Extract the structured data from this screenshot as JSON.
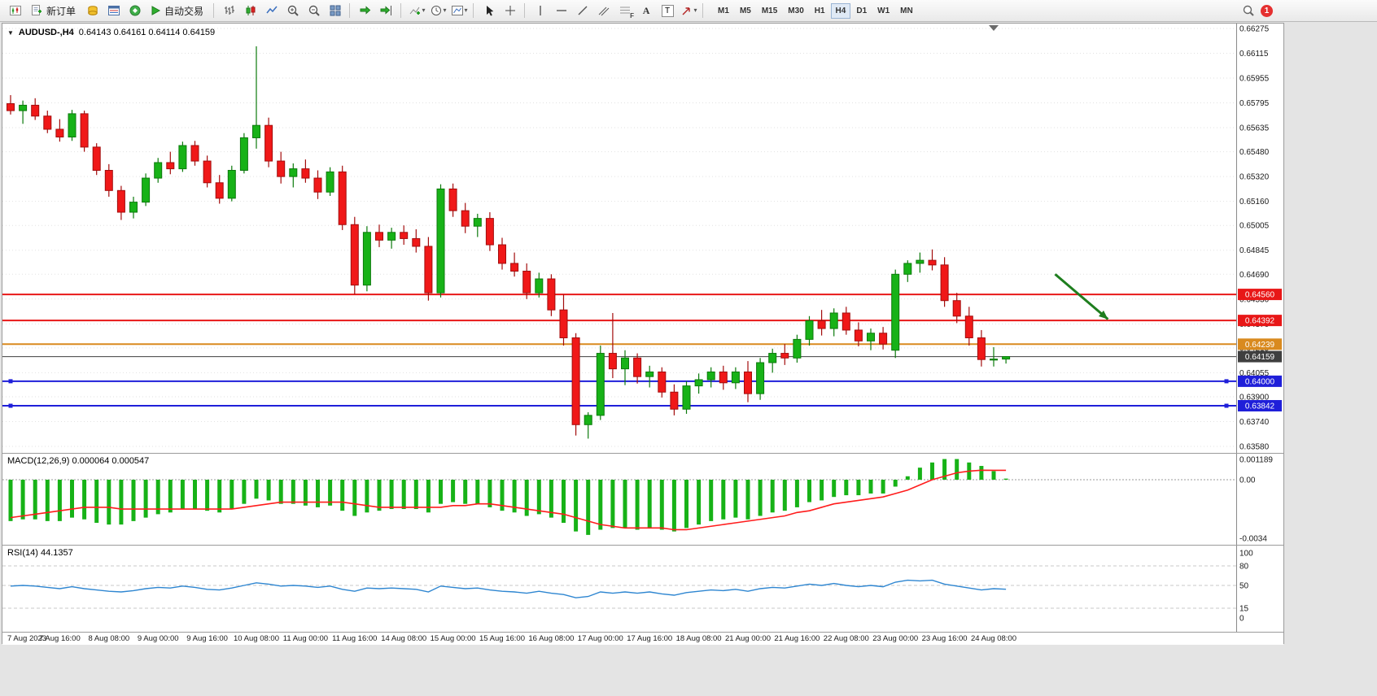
{
  "toolbar": {
    "new_order_label": "新订单",
    "autotrading_label": "自动交易",
    "timeframes": [
      "M1",
      "M5",
      "M15",
      "M30",
      "H1",
      "H4",
      "D1",
      "W1",
      "MN"
    ],
    "active_timeframe": "H4",
    "notification_count": "1",
    "icon_glyphs": {
      "chart_menu_arrow": "▼",
      "dropdown_arrow": "▾",
      "text_tool": "A",
      "label_tool": "T",
      "fibonacci_letter": "F"
    }
  },
  "chart": {
    "symbol_label": "AUDUSD-,H4",
    "ohlc_readout": "0.64143  0.64161  0.64114  0.64159"
  },
  "colors": {
    "chart_bg": "#ffffff",
    "toolbar_bg": "#f0f0f0",
    "grid": "#e2e2e2",
    "up_candle": "#17b217",
    "down_candle": "#f01818",
    "macd_bar": "#17b217",
    "macd_signal": "#ff1c1c",
    "rsi_line": "#2e86d1",
    "level_red": "#e81717",
    "level_orange": "#d98a1f",
    "level_blue": "#1f1fd9"
  },
  "chart_data": [
    {
      "type": "candlestick",
      "symbol": "AUDUSD-",
      "timeframe": "H4",
      "up_color": "#17b217",
      "up_stroke": "#0c7a0c",
      "down_color": "#f01818",
      "down_stroke": "#a30d0d",
      "y_range": [
        0.63569,
        0.66307
      ],
      "x_labels": [
        "7 Aug 2023",
        "7 Aug 16:00",
        "8 Aug 08:00",
        "9 Aug 00:00",
        "9 Aug 16:00",
        "10 Aug 08:00",
        "11 Aug 00:00",
        "11 Aug 16:00",
        "14 Aug 08:00",
        "15 Aug 00:00",
        "15 Aug 16:00",
        "16 Aug 08:00",
        "17 Aug 00:00",
        "17 Aug 16:00",
        "18 Aug 08:00",
        "21 Aug 00:00",
        "21 Aug 16:00",
        "22 Aug 08:00",
        "23 Aug 00:00",
        "23 Aug 16:00",
        "24 Aug 08:00"
      ],
      "label_every_bars": 4,
      "y_axis": [
        {
          "text": "0.66275",
          "value": 0.66275
        },
        {
          "text": "0.66115",
          "value": 0.66115
        },
        {
          "text": "0.65955",
          "value": 0.65955
        },
        {
          "text": "0.65795",
          "value": 0.65795
        },
        {
          "text": "0.65635",
          "value": 0.65635
        },
        {
          "text": "0.65480",
          "value": 0.6548
        },
        {
          "text": "0.65320",
          "value": 0.6532
        },
        {
          "text": "0.65160",
          "value": 0.6516
        },
        {
          "text": "0.65005",
          "value": 0.65005
        },
        {
          "text": "0.64845",
          "value": 0.64845
        },
        {
          "text": "0.64690",
          "value": 0.6469
        },
        {
          "text": "0.64530",
          "value": 0.6453
        },
        {
          "text": "0.64370",
          "value": 0.6437
        },
        {
          "text": "0.64215",
          "value": 0.64215
        },
        {
          "text": "0.64055",
          "value": 0.64055
        },
        {
          "text": "0.63900",
          "value": 0.639
        },
        {
          "text": "0.63740",
          "value": 0.6374
        },
        {
          "text": "0.63580",
          "value": 0.6358
        }
      ],
      "levels": [
        {
          "label": "0.64560",
          "value": 0.6456,
          "color": "#e81717",
          "width": 2
        },
        {
          "label": "0.64392",
          "value": 0.64392,
          "color": "#e81717",
          "width": 2
        },
        {
          "label": "0.64239",
          "value": 0.64239,
          "color": "#d98a1f",
          "width": 2
        },
        {
          "label": "0.64159",
          "value": 0.64159,
          "color": "#3f3f3f",
          "width": 1,
          "current": true
        },
        {
          "label": "0.64000",
          "value": 0.64,
          "color": "#1f1fd9",
          "width": 2,
          "handles": true
        },
        {
          "label": "0.63842",
          "value": 0.63842,
          "color": "#1f1fd9",
          "width": 2,
          "handles": true
        }
      ],
      "arrow": {
        "color": "#1e7e1e",
        "from_bar": 85,
        "from_price": 0.6469,
        "to_bar": 89.3,
        "to_price": 0.644
      },
      "shift_marker_bar": 80,
      "candles": [
        [
          0.6579,
          0.65845,
          0.6572,
          0.65745
        ],
        [
          0.65745,
          0.6581,
          0.6566,
          0.6578
        ],
        [
          0.6578,
          0.65825,
          0.65685,
          0.6571
        ],
        [
          0.6571,
          0.65745,
          0.656,
          0.65625
        ],
        [
          0.65625,
          0.6569,
          0.65545,
          0.65575
        ],
        [
          0.65575,
          0.6575,
          0.6555,
          0.65725
        ],
        [
          0.65725,
          0.65745,
          0.6548,
          0.6551
        ],
        [
          0.6551,
          0.65535,
          0.6533,
          0.6536
        ],
        [
          0.6536,
          0.654,
          0.6519,
          0.6523
        ],
        [
          0.6523,
          0.6526,
          0.6504,
          0.6509
        ],
        [
          0.6509,
          0.6519,
          0.6505,
          0.65155
        ],
        [
          0.65155,
          0.6534,
          0.6513,
          0.6531
        ],
        [
          0.6531,
          0.6544,
          0.6528,
          0.6541
        ],
        [
          0.6541,
          0.6548,
          0.65335,
          0.6537
        ],
        [
          0.6537,
          0.65545,
          0.6535,
          0.6552
        ],
        [
          0.6552,
          0.6555,
          0.6539,
          0.6542
        ],
        [
          0.6542,
          0.65455,
          0.6525,
          0.6528
        ],
        [
          0.6528,
          0.6533,
          0.65145,
          0.6518
        ],
        [
          0.6518,
          0.6539,
          0.6516,
          0.6536
        ],
        [
          0.6536,
          0.656,
          0.6534,
          0.6557
        ],
        [
          0.6557,
          0.6616,
          0.655,
          0.6565
        ],
        [
          0.6565,
          0.657,
          0.6538,
          0.6542
        ],
        [
          0.6542,
          0.6548,
          0.65275,
          0.6532
        ],
        [
          0.6532,
          0.65405,
          0.6525,
          0.6537
        ],
        [
          0.6537,
          0.6543,
          0.6528,
          0.6531
        ],
        [
          0.6531,
          0.6536,
          0.65175,
          0.6522
        ],
        [
          0.6522,
          0.6538,
          0.65195,
          0.6535
        ],
        [
          0.6535,
          0.6539,
          0.64975,
          0.6501
        ],
        [
          0.6501,
          0.6506,
          0.6456,
          0.6462
        ],
        [
          0.6462,
          0.65,
          0.6458,
          0.6496
        ],
        [
          0.6496,
          0.6501,
          0.64865,
          0.6491
        ],
        [
          0.6491,
          0.6499,
          0.64855,
          0.6496
        ],
        [
          0.6496,
          0.65005,
          0.6488,
          0.6492
        ],
        [
          0.6492,
          0.6498,
          0.6483,
          0.6487
        ],
        [
          0.6487,
          0.6493,
          0.6452,
          0.6457
        ],
        [
          0.6457,
          0.6527,
          0.6454,
          0.6524
        ],
        [
          0.6524,
          0.65275,
          0.6506,
          0.651
        ],
        [
          0.651,
          0.6515,
          0.64955,
          0.65
        ],
        [
          0.65,
          0.6508,
          0.6493,
          0.6505
        ],
        [
          0.6505,
          0.6509,
          0.6484,
          0.6488
        ],
        [
          0.6488,
          0.64925,
          0.6472,
          0.6476
        ],
        [
          0.6476,
          0.6483,
          0.64675,
          0.6471
        ],
        [
          0.6471,
          0.6476,
          0.6453,
          0.6457
        ],
        [
          0.6457,
          0.647,
          0.6454,
          0.6466
        ],
        [
          0.6466,
          0.6469,
          0.6442,
          0.6446
        ],
        [
          0.6446,
          0.6456,
          0.6423,
          0.6428
        ],
        [
          0.6428,
          0.6431,
          0.6365,
          0.6372
        ],
        [
          0.6372,
          0.638,
          0.6363,
          0.6378
        ],
        [
          0.6378,
          0.6423,
          0.6375,
          0.6418
        ],
        [
          0.6418,
          0.6444,
          0.6402,
          0.6408
        ],
        [
          0.6408,
          0.642,
          0.63975,
          0.6415
        ],
        [
          0.6415,
          0.6418,
          0.63985,
          0.6403
        ],
        [
          0.6403,
          0.641,
          0.6396,
          0.6406
        ],
        [
          0.6406,
          0.6409,
          0.63895,
          0.6393
        ],
        [
          0.6393,
          0.6398,
          0.6378,
          0.6382
        ],
        [
          0.6382,
          0.64,
          0.6379,
          0.6397
        ],
        [
          0.6397,
          0.6405,
          0.6392,
          0.6401
        ],
        [
          0.6401,
          0.6409,
          0.6396,
          0.6406
        ],
        [
          0.6406,
          0.641,
          0.63945,
          0.6399
        ],
        [
          0.6399,
          0.6409,
          0.6395,
          0.6406
        ],
        [
          0.6406,
          0.6413,
          0.63865,
          0.6392
        ],
        [
          0.6392,
          0.6415,
          0.6388,
          0.6412
        ],
        [
          0.6412,
          0.6421,
          0.64055,
          0.6418
        ],
        [
          0.6418,
          0.6424,
          0.64105,
          0.6415
        ],
        [
          0.6415,
          0.643,
          0.6412,
          0.6427
        ],
        [
          0.6427,
          0.6442,
          0.6423,
          0.6439
        ],
        [
          0.6439,
          0.6446,
          0.64295,
          0.6434
        ],
        [
          0.6434,
          0.6447,
          0.6429,
          0.6444
        ],
        [
          0.6444,
          0.6448,
          0.643,
          0.6433
        ],
        [
          0.6433,
          0.6438,
          0.64225,
          0.6426
        ],
        [
          0.6426,
          0.6434,
          0.642,
          0.6431
        ],
        [
          0.6431,
          0.6435,
          0.64205,
          0.6424
        ],
        [
          0.642,
          0.6472,
          0.6415,
          0.6469
        ],
        [
          0.6469,
          0.6478,
          0.6464,
          0.6476
        ],
        [
          0.6476,
          0.6483,
          0.647,
          0.6478
        ],
        [
          0.6478,
          0.6485,
          0.64715,
          0.6475
        ],
        [
          0.6475,
          0.648,
          0.6448,
          0.6452
        ],
        [
          0.6452,
          0.6457,
          0.64375,
          0.6442
        ],
        [
          0.6442,
          0.6448,
          0.6423,
          0.6428
        ],
        [
          0.6428,
          0.6433,
          0.64095,
          0.6414
        ],
        [
          0.6414,
          0.6422,
          0.64095,
          0.64143
        ],
        [
          0.64143,
          0.64161,
          0.64114,
          0.64159
        ]
      ]
    },
    {
      "type": "bar",
      "name": "MACD",
      "label": "MACD(12,26,9) 0.000064 0.000547",
      "bar_color": "#17b217",
      "signal_color": "#ff1c1c",
      "axis": [
        {
          "text": "0.001189",
          "value": 0.001189
        },
        {
          "text": "0.00",
          "value": 0.0
        },
        {
          "text": "-0.0034",
          "value": -0.0034
        }
      ],
      "zero_line": 0,
      "values": [
        -0.0024,
        -0.0023,
        -0.0023,
        -0.0024,
        -0.0024,
        -0.0022,
        -0.0023,
        -0.0025,
        -0.0026,
        -0.0026,
        -0.0024,
        -0.0022,
        -0.002,
        -0.0019,
        -0.0017,
        -0.0017,
        -0.0018,
        -0.0019,
        -0.0017,
        -0.0014,
        -0.0011,
        -0.0012,
        -0.0014,
        -0.0014,
        -0.0015,
        -0.0016,
        -0.0015,
        -0.0018,
        -0.0021,
        -0.0019,
        -0.0018,
        -0.0017,
        -0.0017,
        -0.0017,
        -0.0019,
        -0.0014,
        -0.0013,
        -0.0014,
        -0.0014,
        -0.0016,
        -0.0018,
        -0.0019,
        -0.0021,
        -0.002,
        -0.0022,
        -0.0025,
        -0.003,
        -0.0032,
        -0.0029,
        -0.0028,
        -0.0028,
        -0.0029,
        -0.0028,
        -0.0029,
        -0.003,
        -0.0028,
        -0.0026,
        -0.0024,
        -0.0023,
        -0.0022,
        -0.0023,
        -0.0021,
        -0.0019,
        -0.0018,
        -0.0016,
        -0.0013,
        -0.0012,
        -0.001,
        -0.0009,
        -0.0009,
        -0.0008,
        -0.0008,
        -0.0004,
        0.0002,
        0.0007,
        0.001,
        0.0012,
        0.0012,
        0.001,
        0.0008,
        0.0005,
        6.4e-05
      ],
      "signal": [
        -0.0022,
        -0.0021,
        -0.002,
        -0.0019,
        -0.0018,
        -0.0017,
        -0.0016,
        -0.0016,
        -0.0016,
        -0.0017,
        -0.0017,
        -0.0017,
        -0.0017,
        -0.0017,
        -0.0017,
        -0.0017,
        -0.0017,
        -0.0017,
        -0.0017,
        -0.0016,
        -0.0015,
        -0.0014,
        -0.0013,
        -0.0013,
        -0.0013,
        -0.0013,
        -0.0013,
        -0.0013,
        -0.0014,
        -0.0015,
        -0.0016,
        -0.0016,
        -0.0016,
        -0.0016,
        -0.0016,
        -0.0016,
        -0.0015,
        -0.0015,
        -0.0014,
        -0.0014,
        -0.0015,
        -0.0016,
        -0.0017,
        -0.0018,
        -0.0019,
        -0.002,
        -0.0022,
        -0.0024,
        -0.0026,
        -0.0027,
        -0.0028,
        -0.0028,
        -0.0028,
        -0.0028,
        -0.0029,
        -0.0029,
        -0.0028,
        -0.0027,
        -0.0026,
        -0.0025,
        -0.0024,
        -0.0023,
        -0.0022,
        -0.0021,
        -0.0019,
        -0.0018,
        -0.0016,
        -0.0014,
        -0.0013,
        -0.0012,
        -0.0011,
        -0.001,
        -0.0008,
        -0.0006,
        -0.0003,
        0.0,
        0.0002,
        0.0004,
        0.0005,
        0.00055,
        0.000547,
        0.000547
      ]
    },
    {
      "type": "line",
      "name": "RSI",
      "label": "RSI(14) 44.1357",
      "line_color": "#2e86d1",
      "range": [
        0,
        100
      ],
      "axis": [
        {
          "text": "100",
          "value": 100
        },
        {
          "text": "80",
          "value": 80
        },
        {
          "text": "50",
          "value": 50
        },
        {
          "text": "15",
          "value": 15
        },
        {
          "text": "0",
          "value": 0
        }
      ],
      "levels": [
        80,
        50,
        15
      ],
      "values": [
        49,
        50,
        49,
        47,
        45,
        48,
        45,
        43,
        41,
        40,
        42,
        45,
        47,
        46,
        49,
        47,
        44,
        43,
        46,
        50,
        54,
        52,
        49,
        50,
        49,
        47,
        49,
        44,
        41,
        46,
        45,
        46,
        45,
        44,
        40,
        49,
        47,
        45,
        46,
        43,
        41,
        40,
        38,
        41,
        38,
        36,
        31,
        33,
        40,
        38,
        40,
        38,
        40,
        37,
        35,
        39,
        41,
        43,
        42,
        44,
        41,
        45,
        47,
        46,
        49,
        52,
        50,
        53,
        50,
        48,
        50,
        48,
        55,
        58,
        57,
        58,
        52,
        49,
        46,
        43,
        45,
        44.1357
      ]
    }
  ]
}
